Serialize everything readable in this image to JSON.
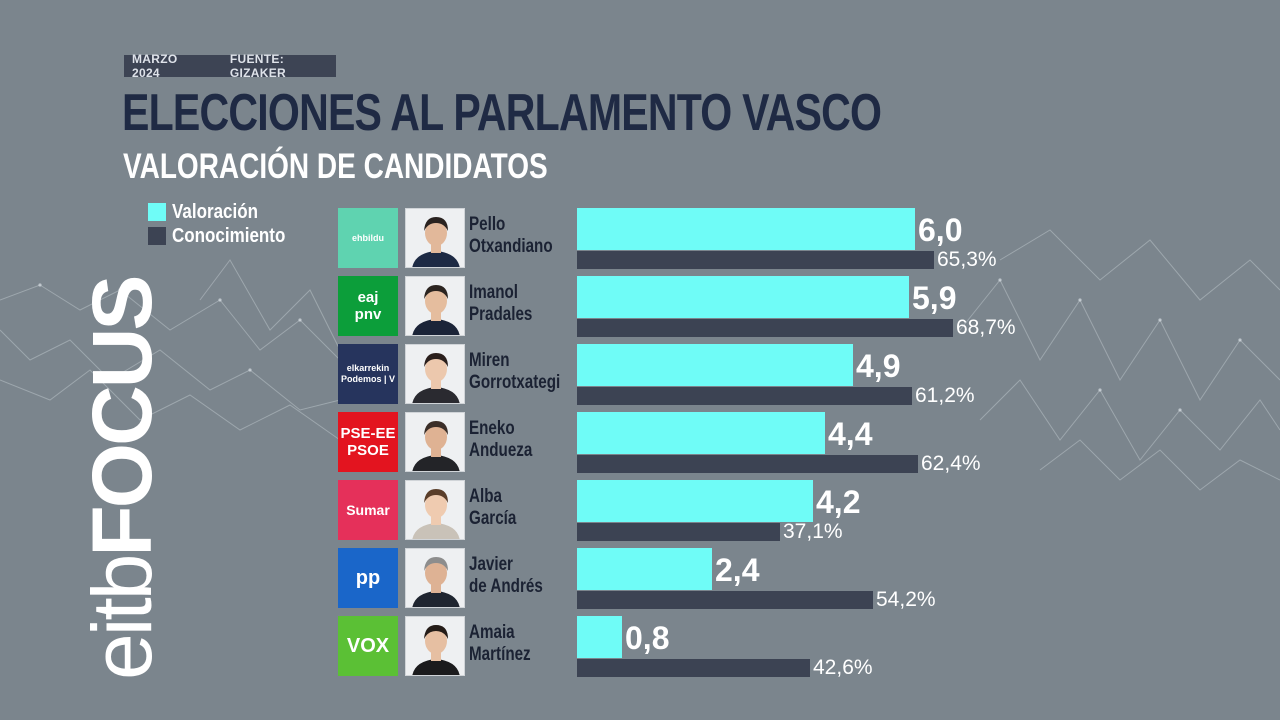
{
  "header": {
    "date": "MARZO 2024",
    "source": "FUENTE: GIZAKER",
    "title": "ELECCIONES AL PARLAMENTO VASCO",
    "subtitle": "VALORACIÓN DE CANDIDATOS"
  },
  "brand": {
    "part1": "eitb",
    "part2": "FOCUS"
  },
  "colors": {
    "valoracion": "#6ffcf7",
    "conocimiento": "#3c4353",
    "background": "#7b858d",
    "title": "#1f2a44"
  },
  "chart_data": {
    "type": "bar",
    "orientation": "horizontal",
    "title": "VALORACIÓN DE CANDIDATOS",
    "categories": [
      "Pello Otxandiano",
      "Imanol Pradales",
      "Miren Gorrotxategi",
      "Eneko Andueza",
      "Alba García",
      "Javier de Andrés",
      "Amaia Martínez"
    ],
    "series": [
      {
        "name": "Valoración",
        "values": [
          6.0,
          5.9,
          4.9,
          4.4,
          4.2,
          2.4,
          0.8
        ],
        "labels": [
          "6,0",
          "5,9",
          "4,9",
          "4,4",
          "4,2",
          "2,4",
          "0,8"
        ],
        "color": "#6ffcf7"
      },
      {
        "name": "Conocimiento",
        "values": [
          65.3,
          68.7,
          61.2,
          62.4,
          37.1,
          54.2,
          42.6
        ],
        "labels": [
          "65,3%",
          "68,7%",
          "61,2%",
          "62,4%",
          "37,1%",
          "54,2%",
          "42,6%"
        ],
        "color": "#3c4353"
      }
    ],
    "legend_position": "top-left",
    "grid": false
  },
  "candidates": [
    {
      "first": "Pello",
      "last": "Otxandiano",
      "party": "EH Bildu",
      "logo_text": [
        "ehbildu"
      ],
      "logo_bg": "#5fd3b0",
      "logo_fg": "#ffffff",
      "hair": "#2a2320",
      "skin": "#e2b89a",
      "shirt": "#1d2a44"
    },
    {
      "first": "Imanol",
      "last": "Pradales",
      "party": "EAJ-PNV",
      "logo_text": [
        "eaj",
        "pnv"
      ],
      "logo_bg": "#0c9e3a",
      "logo_fg": "#ffffff",
      "hair": "#2b2420",
      "skin": "#e5bd9e",
      "shirt": "#1b2438"
    },
    {
      "first": "Miren",
      "last": "Gorrotxategi",
      "party": "Elkarrekin Podemos",
      "logo_text": [
        "elkarrekin",
        "Podemos | V"
      ],
      "logo_bg": "#26345d",
      "logo_fg": "#ffffff",
      "hair": "#2a1f1c",
      "skin": "#ecc8ad",
      "shirt": "#2a2a30"
    },
    {
      "first": "Eneko",
      "last": "Andueza",
      "party": "PSE-EE PSOE",
      "logo_text": [
        "PSE-EE",
        "PSOE"
      ],
      "logo_bg": "#e3141f",
      "logo_fg": "#ffffff",
      "hair": "#3a2e28",
      "skin": "#dfb293",
      "shirt": "#232428"
    },
    {
      "first": "Alba",
      "last": "García",
      "party": "Sumar",
      "logo_text": [
        "Sumar"
      ],
      "logo_bg": "#e5305a",
      "logo_fg": "#ffffff",
      "hair": "#5a3e2a",
      "skin": "#efcbb0",
      "shirt": "#c9c2b8"
    },
    {
      "first": "Javier",
      "last": "de Andrés",
      "party": "PP",
      "logo_text": [
        "pp"
      ],
      "logo_bg": "#1a66c9",
      "logo_fg": "#ffffff",
      "hair": "#8d8d8d",
      "skin": "#deb294",
      "shirt": "#1f2530"
    },
    {
      "first": "Amaia",
      "last": "Martínez",
      "party": "VOX",
      "logo_text": [
        "VOX"
      ],
      "logo_bg": "#5bc035",
      "logo_fg": "#ffffff",
      "hair": "#241c18",
      "skin": "#e6bfa2",
      "shirt": "#1b1b1d"
    }
  ]
}
